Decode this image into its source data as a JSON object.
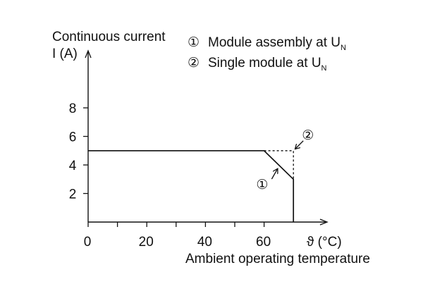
{
  "chart_data": {
    "type": "line",
    "ylabel_line1": "Continuous current",
    "ylabel_line2": "I (A)",
    "xlabel": "Ambient operating temperature",
    "x_unit_label": "ϑ (°C)",
    "xlim": [
      0,
      70
    ],
    "ylim": [
      0,
      10
    ],
    "x_ticks": [
      0,
      20,
      40,
      60
    ],
    "x_tick_labels": [
      "0",
      "20",
      "40",
      "60"
    ],
    "y_ticks": [
      2,
      4,
      6,
      8
    ],
    "y_tick_labels": [
      "2",
      "4",
      "6",
      "8"
    ],
    "legend": [
      {
        "marker": "①",
        "text": "Module assembly at U",
        "subscript": "N"
      },
      {
        "marker": "②",
        "text": "Single module at U",
        "subscript": "N"
      }
    ],
    "series": [
      {
        "marker": "①",
        "style": "solid",
        "x": [
          0,
          60,
          70,
          70
        ],
        "y": [
          5,
          5,
          3,
          0
        ]
      },
      {
        "marker": "②",
        "style": "dashed",
        "x": [
          60,
          70,
          70
        ],
        "y": [
          5,
          5,
          3
        ]
      }
    ],
    "annotations": [
      {
        "marker": "①",
        "target_x": 65,
        "target_y": 4
      },
      {
        "marker": "②",
        "target_x": 70,
        "target_y": 5
      }
    ],
    "colors": {
      "line": "#111111",
      "background": "#ffffff"
    }
  }
}
